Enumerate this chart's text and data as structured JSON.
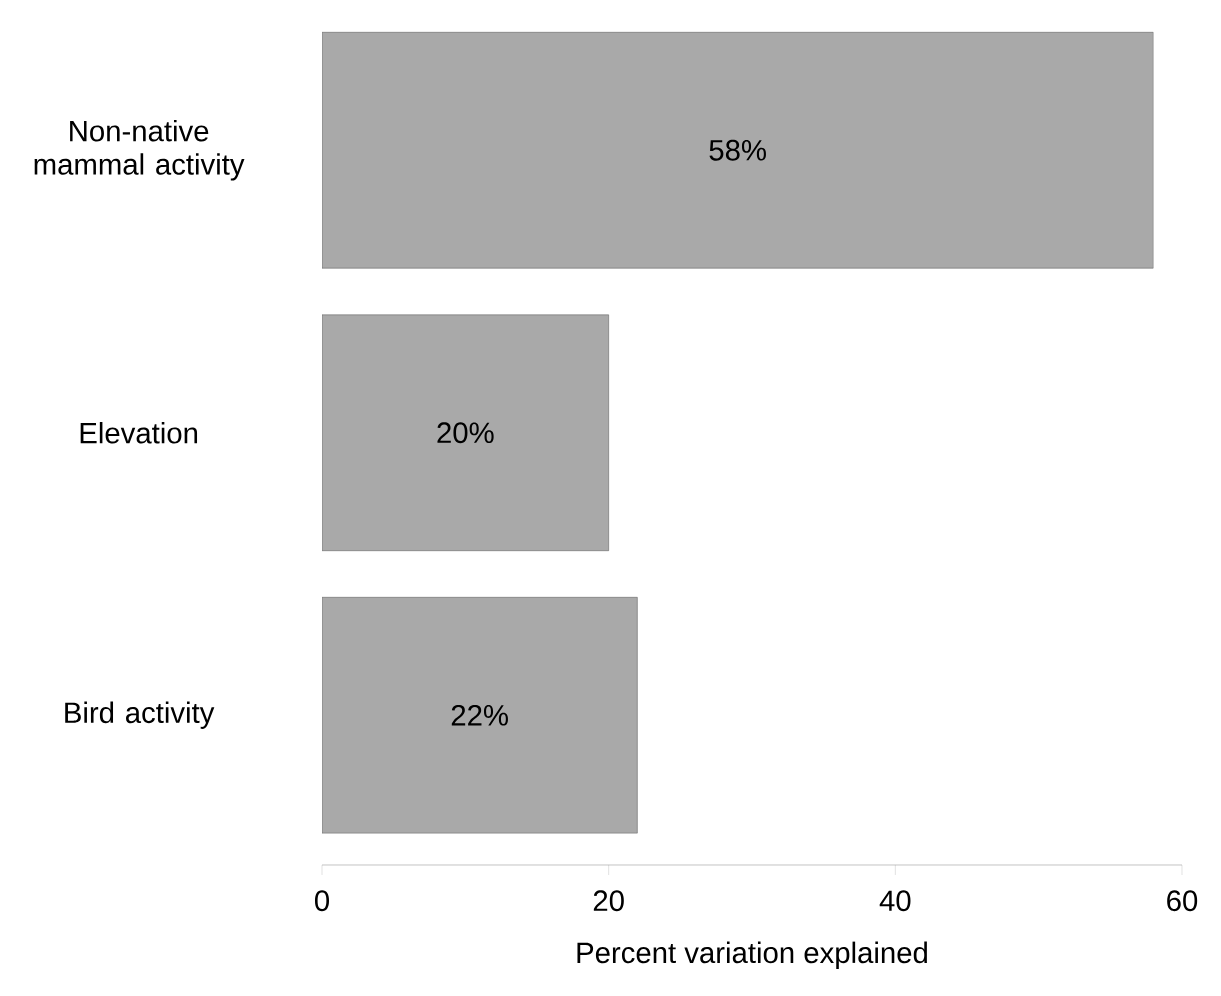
{
  "chart_data": {
    "type": "bar",
    "orientation": "horizontal",
    "xlabel": "Percent variation explained",
    "categories": [
      "Non-native mammal activity",
      "Elevation",
      "Bird activity"
    ],
    "values": [
      58,
      20,
      22
    ],
    "value_labels": [
      "58%",
      "20%",
      "22%"
    ],
    "color": "#a9a9a9",
    "xlim": [
      0,
      60
    ],
    "xticks": [
      0,
      20,
      40,
      60
    ]
  }
}
